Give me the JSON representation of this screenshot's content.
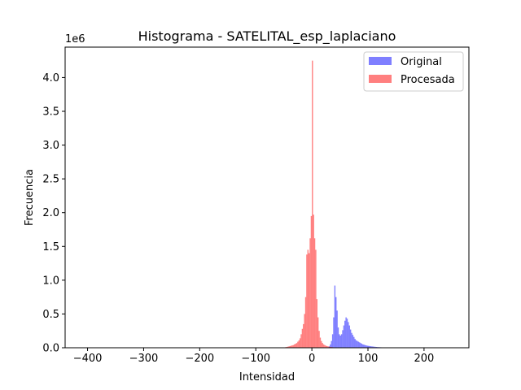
{
  "chart_data": {
    "type": "bar",
    "title": "Histograma - SATELITAL_esp_laplaciano",
    "xlabel": "Intensidad",
    "ylabel": "Frecuencia",
    "y_offset_text": "1e6",
    "xlim": [
      -440,
      280
    ],
    "ylim": [
      0,
      4.45
    ],
    "x_ticks": [
      -400,
      -300,
      -200,
      -100,
      0,
      100,
      200
    ],
    "y_ticks": [
      0.0,
      0.5,
      1.0,
      1.5,
      2.0,
      2.5,
      3.0,
      3.5,
      4.0
    ],
    "grid": false,
    "legend_position": "top-right",
    "series": [
      {
        "name": "Original",
        "color": "#0000ff",
        "alpha": 0.5,
        "bin_width": 2,
        "x": [
          30,
          32,
          34,
          36,
          38,
          40,
          42,
          44,
          46,
          48,
          50,
          52,
          54,
          56,
          58,
          60,
          62,
          64,
          66,
          68,
          70,
          72,
          74,
          76,
          78,
          80,
          82,
          84,
          86,
          88,
          90,
          92,
          94,
          96,
          98,
          100,
          102,
          104,
          106,
          108,
          110,
          112,
          114,
          116,
          118,
          120,
          122,
          124,
          126,
          128,
          130,
          132,
          134
        ],
        "values": [
          0.02,
          0.05,
          0.1,
          0.2,
          0.45,
          0.92,
          0.75,
          0.55,
          0.3,
          0.2,
          0.18,
          0.2,
          0.26,
          0.33,
          0.4,
          0.45,
          0.43,
          0.38,
          0.33,
          0.27,
          0.22,
          0.19,
          0.16,
          0.13,
          0.11,
          0.1,
          0.09,
          0.08,
          0.07,
          0.06,
          0.05,
          0.045,
          0.04,
          0.035,
          0.03,
          0.028,
          0.025,
          0.022,
          0.02,
          0.018,
          0.016,
          0.014,
          0.012,
          0.01,
          0.009,
          0.008,
          0.007,
          0.006,
          0.005,
          0.004,
          0.003,
          0.002,
          0.001
        ]
      },
      {
        "name": "Procesada",
        "color": "#ff0000",
        "alpha": 0.5,
        "bin_width": 2,
        "x": [
          -50,
          -48,
          -46,
          -44,
          -42,
          -40,
          -38,
          -36,
          -34,
          -32,
          -30,
          -28,
          -26,
          -24,
          -22,
          -20,
          -18,
          -16,
          -14,
          -12,
          -10,
          -8,
          -6,
          -4,
          -2,
          0,
          2,
          4,
          6,
          8,
          10,
          12,
          14,
          16,
          18,
          20,
          22,
          24,
          26,
          28,
          30,
          32,
          34,
          36,
          38,
          40,
          42,
          44,
          46,
          48
        ],
        "values": [
          0.005,
          0.008,
          0.012,
          0.016,
          0.02,
          0.025,
          0.03,
          0.035,
          0.04,
          0.05,
          0.06,
          0.07,
          0.09,
          0.11,
          0.14,
          0.2,
          0.28,
          0.35,
          0.5,
          0.75,
          1.38,
          1.45,
          1.4,
          1.62,
          1.95,
          4.25,
          1.97,
          1.62,
          1.45,
          0.72,
          0.45,
          0.25,
          0.15,
          0.1,
          0.07,
          0.05,
          0.04,
          0.03,
          0.025,
          0.02,
          0.016,
          0.012,
          0.01,
          0.008,
          0.006,
          0.005,
          0.004,
          0.003,
          0.002,
          0.001
        ]
      }
    ]
  }
}
